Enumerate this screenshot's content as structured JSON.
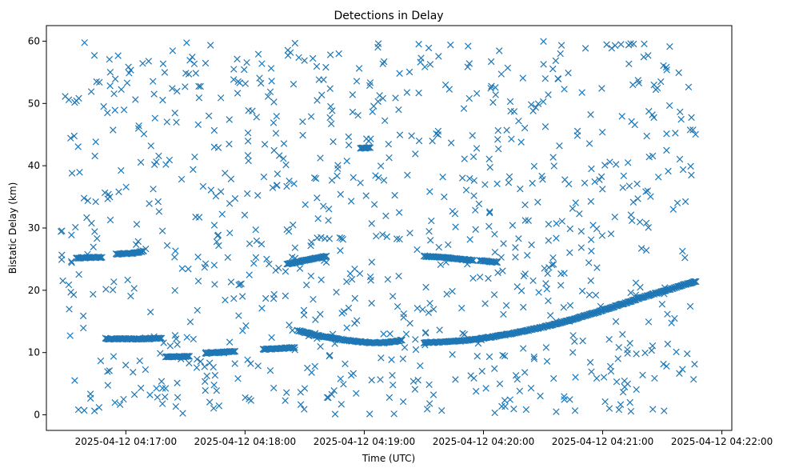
{
  "chart_data": {
    "type": "scatter",
    "title": "Detections in Delay",
    "xlabel": "Time (UTC)",
    "ylabel": "Bistatic Delay (km)",
    "marker": "x",
    "color": "#1f77b4",
    "xlim_seconds": [
      -40,
      305
    ],
    "ylim": [
      -2.5,
      62.5
    ],
    "x_origin": "2025-04-12 04:17:00",
    "x_ticks": [
      {
        "seconds": 0,
        "label": "2025-04-12 04:17:00"
      },
      {
        "seconds": 60,
        "label": "2025-04-12 04:18:00"
      },
      {
        "seconds": 120,
        "label": "2025-04-12 04:19:00"
      },
      {
        "seconds": 180,
        "label": "2025-04-12 04:20:00"
      },
      {
        "seconds": 240,
        "label": "2025-04-12 04:21:00"
      },
      {
        "seconds": 300,
        "label": "2025-04-12 04:22:00"
      }
    ],
    "y_ticks": [
      0,
      10,
      20,
      30,
      40,
      50,
      60
    ],
    "data_span_seconds": [
      -33,
      287
    ],
    "background_noise_count": 900,
    "tracks": [
      {
        "name": "main-track-a",
        "points": [
          [
            87,
            13.5
          ],
          [
            95,
            12.8
          ],
          [
            104,
            12.3
          ],
          [
            113,
            11.9
          ],
          [
            122,
            11.6
          ],
          [
            131,
            11.6
          ],
          [
            136,
            11.8
          ],
          [
            139,
            12.0
          ]
        ]
      },
      {
        "name": "main-track-b",
        "points": [
          [
            150,
            11.6
          ],
          [
            160,
            11.7
          ],
          [
            170,
            11.9
          ],
          [
            180,
            12.3
          ],
          [
            190,
            12.8
          ],
          [
            200,
            13.4
          ],
          [
            210,
            14.1
          ],
          [
            220,
            14.9
          ],
          [
            230,
            15.8
          ],
          [
            240,
            16.8
          ],
          [
            250,
            17.8
          ],
          [
            260,
            18.9
          ],
          [
            270,
            19.8
          ],
          [
            280,
            20.8
          ],
          [
            287,
            21.4
          ]
        ]
      },
      {
        "name": "track-25-a",
        "points": [
          [
            -25,
            25.2
          ],
          [
            -12,
            25.3
          ]
        ]
      },
      {
        "name": "track-26",
        "points": [
          [
            -5,
            25.8
          ],
          [
            5,
            26.0
          ],
          [
            9,
            26.3
          ]
        ]
      },
      {
        "name": "track-25-b",
        "points": [
          [
            81,
            24.2
          ],
          [
            90,
            24.8
          ],
          [
            101,
            25.5
          ]
        ]
      },
      {
        "name": "track-25-c",
        "points": [
          [
            150,
            25.5
          ],
          [
            162,
            25.2
          ],
          [
            175,
            24.8
          ]
        ]
      },
      {
        "name": "track-24",
        "points": [
          [
            178,
            24.8
          ],
          [
            187,
            24.5
          ]
        ]
      },
      {
        "name": "track-12",
        "points": [
          [
            -10,
            12.2
          ],
          [
            8,
            12.2
          ],
          [
            18,
            12.3
          ]
        ]
      },
      {
        "name": "track-9",
        "points": [
          [
            20,
            9.3
          ],
          [
            32,
            9.4
          ]
        ]
      },
      {
        "name": "track-10-a",
        "points": [
          [
            40,
            9.9
          ],
          [
            55,
            10.2
          ]
        ]
      },
      {
        "name": "track-10-b",
        "points": [
          [
            69,
            10.5
          ],
          [
            85,
            10.8
          ]
        ]
      },
      {
        "name": "track-43",
        "points": [
          [
            118,
            42.8
          ],
          [
            123,
            42.9
          ]
        ]
      }
    ]
  }
}
